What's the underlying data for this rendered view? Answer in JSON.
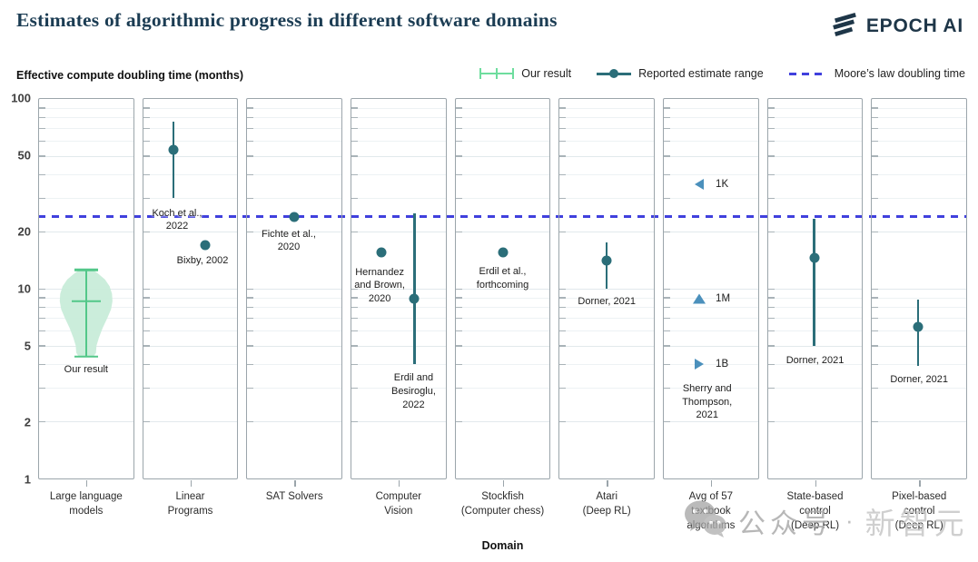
{
  "header": {
    "title": "Estimates of algorithmic progress in different software domains",
    "brand": "EPOCH AI"
  },
  "axis": {
    "y_title": "Effective compute doubling time (months)",
    "x_title": "Domain"
  },
  "legend": {
    "our_result": "Our result",
    "estimate_range": "Reported estimate range",
    "moores_law": "Moore’s law doubling time"
  },
  "colors": {
    "our_result_green": "#6edd9e",
    "violin_fill": "#c8ecd9",
    "violin_line": "#53c789",
    "estimate_teal": "#2b6e79",
    "moores_law_blue": "#4040dd",
    "triangle_blue": "#4b90bc",
    "title_navy": "#1b3c53"
  },
  "icons": {
    "brand_mark": "epoch-slashes-icon",
    "watermark_icon": "wechat-icon"
  },
  "watermark": {
    "text1": "公众号",
    "separator": "·",
    "text2": "新智元"
  },
  "chart_data": {
    "type": "scatter",
    "title": "Estimates of algorithmic progress in different software domains",
    "ylabel": "Effective compute doubling time (months)",
    "xlabel": "Domain",
    "y_scale": "log",
    "ylim": [
      1,
      100
    ],
    "y_ticks_labeled": [
      100,
      50,
      20,
      10,
      5,
      2,
      1
    ],
    "y_ticks_minor": [
      90,
      80,
      70,
      60,
      40,
      30,
      9,
      8,
      7,
      6,
      4,
      3
    ],
    "moores_law_doubling_months": 24,
    "panels": [
      {
        "domain": "Large language models",
        "domain_lines": [
          "Large language",
          "models"
        ],
        "markers": [
          {
            "kind": "violin",
            "x": 0.5,
            "median": 8.6,
            "lo": 4.4,
            "hi": 12.6,
            "profile": [
              [
                12.6,
                0.065
              ],
              [
                12.1,
                0.12
              ],
              [
                11.2,
                0.2
              ],
              [
                10.3,
                0.25
              ],
              [
                9.4,
                0.275
              ],
              [
                8.6,
                0.28
              ],
              [
                7.8,
                0.265
              ],
              [
                7.0,
                0.225
              ],
              [
                6.2,
                0.175
              ],
              [
                5.5,
                0.135
              ],
              [
                5.0,
                0.11
              ],
              [
                4.6,
                0.105
              ],
              [
                4.4,
                0.08
              ]
            ],
            "label_lines": [
              "Our result"
            ],
            "label_x": 0.5,
            "label_top": 4.05
          }
        ]
      },
      {
        "domain": "Linear Programs",
        "domain_lines": [
          "Linear",
          "Programs"
        ],
        "markers": [
          {
            "kind": "range_point",
            "x": 0.32,
            "value": 54,
            "range": [
              30,
              76
            ],
            "label_lines": [
              "Koch et al.,",
              "2022"
            ],
            "label_x": 0.36,
            "label_top": 27
          },
          {
            "kind": "point",
            "x": 0.66,
            "value": 17,
            "label_lines": [
              "Bixby, 2002"
            ],
            "label_x": 0.63,
            "label_top": 15.2
          }
        ]
      },
      {
        "domain": "SAT Solvers",
        "domain_lines": [
          "SAT Solvers"
        ],
        "markers": [
          {
            "kind": "point",
            "x": 0.5,
            "value": 24,
            "label_lines": [
              "Fichte et al.,",
              "2020"
            ],
            "label_x": 0.44,
            "label_top": 21
          }
        ]
      },
      {
        "domain": "Computer Vision",
        "domain_lines": [
          "Computer",
          "Vision"
        ],
        "markers": [
          {
            "kind": "point",
            "x": 0.32,
            "value": 15.5,
            "label_lines": [
              "Hernandez",
              "and Brown,",
              "2020"
            ],
            "label_x": 0.3,
            "label_top": 13.2
          },
          {
            "kind": "range_point",
            "x": 0.67,
            "value": 8.9,
            "range": [
              4,
              25
            ],
            "label_lines": [
              "Erdil and",
              "Besiroglu,",
              "2022"
            ],
            "label_x": 0.66,
            "label_top": 3.65
          }
        ]
      },
      {
        "domain": "Stockfish (Computer chess)",
        "domain_lines": [
          "Stockfish",
          "(Computer chess)"
        ],
        "markers": [
          {
            "kind": "point",
            "x": 0.5,
            "value": 15.5,
            "label_lines": [
              "Erdil et al.,",
              "forthcoming"
            ],
            "label_x": 0.5,
            "label_top": 13.3
          }
        ]
      },
      {
        "domain": "Atari (Deep RL)",
        "domain_lines": [
          "Atari",
          "(Deep RL)"
        ],
        "markers": [
          {
            "kind": "range_point",
            "x": 0.5,
            "value": 14,
            "range": [
              10,
              17.5
            ],
            "label_lines": [
              "Dorner, 2021"
            ],
            "label_x": 0.5,
            "label_top": 9.25
          }
        ]
      },
      {
        "domain": "Avg of 57 textbook algorithms",
        "domain_lines": [
          "Avg of 57",
          "textbook",
          "algorithms"
        ],
        "markers": [
          {
            "kind": "triangle",
            "dir": "left",
            "x": 0.38,
            "value": 35.5,
            "text": "1K",
            "text_x": 0.55
          },
          {
            "kind": "triangle",
            "dir": "up",
            "x": 0.38,
            "value": 8.9,
            "text": "1M",
            "text_x": 0.55
          },
          {
            "kind": "triangle",
            "dir": "right",
            "x": 0.38,
            "value": 4.0,
            "text": "1B",
            "text_x": 0.55,
            "label_lines": [
              "Sherry and",
              "Thompson,",
              "2021"
            ],
            "label_x": 0.46,
            "label_top": 3.2
          }
        ]
      },
      {
        "domain": "State-based control (Deep RL)",
        "domain_lines": [
          "State-based",
          "control",
          "(Deep RL)"
        ],
        "markers": [
          {
            "kind": "range_point",
            "x": 0.49,
            "value": 14.5,
            "range": [
              5,
              23.3
            ],
            "label_lines": [
              "Dorner, 2021"
            ],
            "label_x": 0.5,
            "label_top": 4.5
          }
        ]
      },
      {
        "domain": "Pixel-based control (Deep RL)",
        "domain_lines": [
          "Pixel-based",
          "control",
          "(Deep RL)"
        ],
        "markers": [
          {
            "kind": "range_point",
            "x": 0.49,
            "value": 6.3,
            "range": [
              3.9,
              8.8
            ],
            "label_lines": [
              "Dorner, 2021"
            ],
            "label_x": 0.5,
            "label_top": 3.6
          }
        ]
      }
    ]
  }
}
